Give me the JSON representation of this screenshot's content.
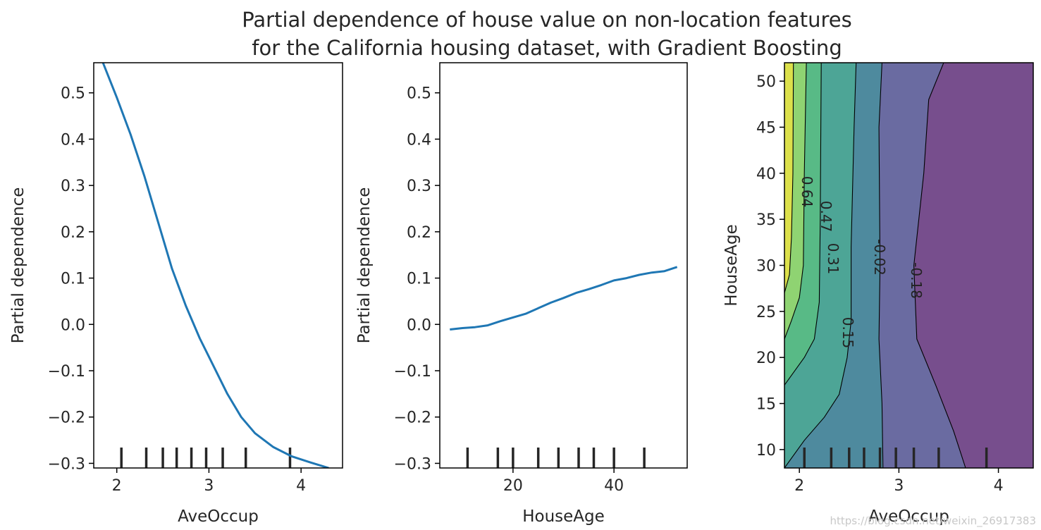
{
  "figure": {
    "title_line1": "Partial dependence of house value on non-location features",
    "title_line2": "for the California housing dataset, with Gradient Boosting"
  },
  "watermark": "https://blog.csdn.net/weixin_26917383",
  "colors": {
    "line": "#1f77b4",
    "axes": "#000000",
    "rug": "#262626"
  },
  "chart_data": [
    {
      "type": "line",
      "xlabel": "AveOccup",
      "ylabel": "Partial dependence",
      "xlim": [
        1.75,
        4.45
      ],
      "ylim": [
        -0.31,
        0.565
      ],
      "xticks": [
        2,
        3,
        4
      ],
      "xtick_labels": [
        "2",
        "3",
        "4"
      ],
      "yticks": [
        -0.3,
        -0.2,
        -0.1,
        0.0,
        0.1,
        0.2,
        0.3,
        0.4,
        0.5
      ],
      "ytick_labels": [
        "−0.3",
        "−0.2",
        "−0.1",
        "0.0",
        "0.1",
        "0.2",
        "0.3",
        "0.4",
        "0.5"
      ],
      "x": [
        1.85,
        2.0,
        2.15,
        2.3,
        2.45,
        2.6,
        2.75,
        2.9,
        3.05,
        3.2,
        3.35,
        3.5,
        3.7,
        3.9,
        4.1,
        4.3
      ],
      "y": [
        0.565,
        0.49,
        0.41,
        0.32,
        0.22,
        0.12,
        0.04,
        -0.03,
        -0.09,
        -0.15,
        -0.2,
        -0.235,
        -0.265,
        -0.285,
        -0.298,
        -0.31
      ],
      "rug_deciles": [
        2.05,
        2.32,
        2.5,
        2.65,
        2.81,
        2.97,
        3.15,
        3.4,
        3.88
      ]
    },
    {
      "type": "line",
      "xlabel": "HouseAge",
      "ylabel": "Partial dependence",
      "xlim": [
        5.5,
        54.5
      ],
      "ylim": [
        -0.31,
        0.565
      ],
      "xticks": [
        20,
        40
      ],
      "xtick_labels": [
        "20",
        "40"
      ],
      "yticks": [
        -0.3,
        -0.2,
        -0.1,
        0.0,
        0.1,
        0.2,
        0.3,
        0.4,
        0.5
      ],
      "ytick_labels": [
        "−0.3",
        "−0.2",
        "−0.1",
        "0.0",
        "0.1",
        "0.2",
        "0.3",
        "0.4",
        "0.5"
      ],
      "x": [
        7.5,
        10,
        12.5,
        15,
        17.5,
        20,
        22.5,
        25,
        27.5,
        30,
        32.5,
        35,
        37.5,
        40,
        42.5,
        45,
        47.5,
        50,
        52.5
      ],
      "y": [
        -0.011,
        -0.008,
        -0.006,
        -0.002,
        0.007,
        0.015,
        0.023,
        0.035,
        0.047,
        0.057,
        0.068,
        0.076,
        0.085,
        0.095,
        0.1,
        0.107,
        0.112,
        0.115,
        0.124
      ],
      "rug_deciles": [
        11,
        17,
        20,
        25,
        29,
        33,
        36,
        40,
        46
      ]
    },
    {
      "type": "contour",
      "xlabel": "AveOccup",
      "ylabel": "HouseAge",
      "xlim": [
        1.85,
        4.35
      ],
      "ylim": [
        8,
        52
      ],
      "xticks": [
        2,
        3,
        4
      ],
      "xtick_labels": [
        "2",
        "3",
        "4"
      ],
      "yticks": [
        10,
        15,
        20,
        25,
        30,
        35,
        40,
        45,
        50
      ],
      "ytick_labels": [
        "10",
        "15",
        "20",
        "25",
        "30",
        "35",
        "40",
        "45",
        "50"
      ],
      "levels": [
        0.64,
        0.47,
        0.31,
        0.15,
        -0.02,
        -0.18
      ],
      "level_labels": [
        "0.64",
        "0.47",
        "0.31",
        "0.15",
        "-0.02",
        "-0.18"
      ],
      "contour_lines": [
        {
          "level": 0.64,
          "points": [
            [
              1.85,
              27
            ],
            [
              1.9,
              29
            ],
            [
              1.92,
              33
            ],
            [
              1.935,
              40
            ],
            [
              1.94,
              52
            ]
          ]
        },
        {
          "level": 0.47,
          "points": [
            [
              1.85,
              22
            ],
            [
              1.92,
              24
            ],
            [
              2.0,
              26.5
            ],
            [
              2.04,
              30
            ],
            [
              2.05,
              40
            ],
            [
              2.07,
              52
            ]
          ]
        },
        {
          "level": 0.31,
          "points": [
            [
              1.85,
              17
            ],
            [
              1.95,
              18.5
            ],
            [
              2.05,
              20
            ],
            [
              2.15,
              22
            ],
            [
              2.2,
              26
            ],
            [
              2.21,
              35
            ],
            [
              2.22,
              52
            ]
          ]
        },
        {
          "level": 0.15,
          "points": [
            [
              1.85,
              8
            ],
            [
              2.05,
              11
            ],
            [
              2.25,
              13.5
            ],
            [
              2.4,
              16
            ],
            [
              2.48,
              20
            ],
            [
              2.52,
              24
            ],
            [
              2.52,
              32
            ],
            [
              2.55,
              45
            ],
            [
              2.57,
              52
            ]
          ]
        },
        {
          "level": -0.02,
          "points": [
            [
              2.84,
              8
            ],
            [
              2.83,
              15
            ],
            [
              2.8,
              22
            ],
            [
              2.81,
              30
            ],
            [
              2.8,
              45
            ],
            [
              2.83,
              52
            ]
          ]
        },
        {
          "level": -0.18,
          "points": [
            [
              3.67,
              8
            ],
            [
              3.55,
              12
            ],
            [
              3.37,
              17
            ],
            [
              3.18,
              22
            ],
            [
              3.15,
              30
            ],
            [
              3.25,
              40
            ],
            [
              3.3,
              48
            ],
            [
              3.45,
              52
            ]
          ]
        }
      ],
      "rug_deciles": [
        2.05,
        2.32,
        2.5,
        2.65,
        2.81,
        2.97,
        3.15,
        3.4,
        3.88
      ]
    }
  ]
}
